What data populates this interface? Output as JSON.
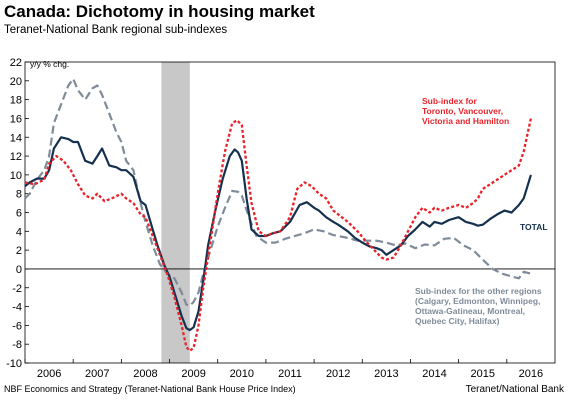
{
  "header": {
    "title": "Canada: Dichotomy in housing market",
    "subtitle": "Teranet-National Bank regional sub-indexes"
  },
  "footer": {
    "source": "NBF Economics and Strategy (Teranet-National Bank House Price Index)",
    "credit": "Teranet/National Bank"
  },
  "chart_data": {
    "type": "line",
    "title": "Canada: Dichotomy in housing market",
    "subtitle": "Teranet-National Bank regional sub-indexes",
    "ylabel": "y/y % chg.",
    "ylim": [
      -10,
      22
    ],
    "yticks": [
      -10,
      -8,
      -6,
      -4,
      -2,
      0,
      2,
      4,
      6,
      8,
      10,
      12,
      14,
      16,
      18,
      20,
      22
    ],
    "xlim": [
      2005.5,
      2016.5
    ],
    "xtick_labels": [
      "2006",
      "2007",
      "2008",
      "2009",
      "2010",
      "2011",
      "2012",
      "2013",
      "2014",
      "2015",
      "2016"
    ],
    "xtick_positions": [
      2006,
      2007,
      2008,
      2009,
      2010,
      2011,
      2012,
      2013,
      2014,
      2015,
      2016
    ],
    "zero_line": true,
    "grid": false,
    "recession_band": {
      "start": 2008.33,
      "end": 2008.92,
      "color": "#c8c8c8"
    },
    "series": [
      {
        "name": "TOTAL",
        "color": "#15314f",
        "style": "solid",
        "x": [
          2005.5,
          2005.6,
          2005.75,
          2005.9,
          2006.0,
          2006.1,
          2006.25,
          2006.4,
          2006.5,
          2006.6,
          2006.75,
          2006.9,
          2007.0,
          2007.1,
          2007.25,
          2007.4,
          2007.5,
          2007.6,
          2007.75,
          2007.9,
          2008.0,
          2008.15,
          2008.25,
          2008.4,
          2008.5,
          2008.6,
          2008.75,
          2008.85,
          2008.92,
          2009.0,
          2009.1,
          2009.2,
          2009.3,
          2009.45,
          2009.6,
          2009.75,
          2009.85,
          2009.92,
          2010.0,
          2010.1,
          2010.2,
          2010.35,
          2010.5,
          2010.65,
          2010.8,
          2011.0,
          2011.2,
          2011.35,
          2011.5,
          2011.6,
          2011.75,
          2011.9,
          2012.0,
          2012.2,
          2012.35,
          2012.5,
          2012.65,
          2012.8,
          2012.9,
          2013.0,
          2013.15,
          2013.3,
          2013.45,
          2013.6,
          2013.75,
          2013.9,
          2014.0,
          2014.15,
          2014.3,
          2014.5,
          2014.65,
          2014.8,
          2014.9,
          2015.0,
          2015.15,
          2015.3,
          2015.45,
          2015.6,
          2015.75,
          2015.85,
          2016.0
        ],
        "values": [
          8.8,
          9.2,
          9.6,
          9.6,
          10.5,
          12.8,
          14.0,
          13.8,
          13.5,
          13.5,
          11.5,
          11.2,
          12.0,
          12.8,
          11.0,
          10.8,
          10.5,
          10.5,
          9.8,
          7.2,
          6.8,
          4.2,
          2.5,
          0.3,
          -0.8,
          -2.5,
          -5.0,
          -6.3,
          -6.5,
          -6.2,
          -4.5,
          -1.2,
          2.5,
          6.2,
          9.5,
          12.0,
          12.7,
          12.4,
          11.5,
          7.5,
          4.2,
          3.5,
          3.5,
          3.8,
          4.0,
          5.0,
          6.8,
          7.1,
          6.5,
          6.2,
          5.5,
          5.0,
          4.7,
          4.0,
          3.3,
          2.8,
          2.4,
          2.2,
          2.0,
          1.5,
          2.0,
          2.5,
          3.5,
          4.2,
          5.0,
          4.5,
          5.0,
          4.8,
          5.2,
          5.5,
          5.0,
          4.8,
          4.6,
          4.7,
          5.3,
          5.8,
          6.2,
          6.0,
          6.8,
          7.5,
          10.0
        ]
      },
      {
        "name": "Sub-index for Toronto, Vancouver, Victoria and Hamilton",
        "color": "#e8232a",
        "style": "dotted",
        "x": [
          2005.5,
          2005.7,
          2005.9,
          2006.0,
          2006.15,
          2006.3,
          2006.45,
          2006.6,
          2006.75,
          2006.9,
          2007.0,
          2007.15,
          2007.3,
          2007.5,
          2007.6,
          2007.75,
          2007.9,
          2008.0,
          2008.15,
          2008.3,
          2008.45,
          2008.6,
          2008.75,
          2008.85,
          2008.92,
          2009.0,
          2009.1,
          2009.2,
          2009.35,
          2009.5,
          2009.65,
          2009.8,
          2009.9,
          2010.0,
          2010.1,
          2010.2,
          2010.35,
          2010.5,
          2010.65,
          2010.8,
          2011.0,
          2011.15,
          2011.3,
          2011.45,
          2011.6,
          2011.75,
          2011.9,
          2012.0,
          2012.2,
          2012.4,
          2012.6,
          2012.75,
          2012.9,
          2013.0,
          2013.15,
          2013.3,
          2013.45,
          2013.6,
          2013.75,
          2013.9,
          2014.0,
          2014.15,
          2014.3,
          2014.5,
          2014.65,
          2014.8,
          2014.9,
          2015.0,
          2015.15,
          2015.3,
          2015.45,
          2015.6,
          2015.75,
          2015.85,
          2016.0
        ],
        "values": [
          9.2,
          9.0,
          9.5,
          11.2,
          12.0,
          11.5,
          10.5,
          9.0,
          7.8,
          7.5,
          8.0,
          7.2,
          7.5,
          8.0,
          7.5,
          7.0,
          5.8,
          5.5,
          3.5,
          1.5,
          -0.5,
          -3.0,
          -6.0,
          -8.3,
          -8.7,
          -8.4,
          -6.0,
          -2.0,
          3.0,
          8.0,
          12.5,
          15.5,
          15.8,
          15.3,
          11.0,
          7.0,
          4.0,
          3.5,
          3.8,
          4.0,
          5.5,
          8.5,
          9.2,
          8.8,
          8.0,
          7.5,
          6.2,
          5.8,
          5.0,
          4.0,
          2.8,
          2.0,
          1.2,
          1.0,
          1.2,
          2.5,
          4.0,
          5.5,
          6.5,
          6.0,
          6.5,
          6.2,
          6.5,
          6.8,
          6.5,
          7.0,
          7.5,
          8.5,
          9.0,
          9.5,
          10.0,
          10.5,
          11.0,
          12.5,
          16.0
        ]
      },
      {
        "name": "Sub-index for the other regions (Calgary, Edmonton, Winnipeg, Ottawa-Gatineau, Montreal, Quebec City, Halifax)",
        "color": "#7f8b99",
        "style": "dashed",
        "x": [
          2005.5,
          2005.6,
          2005.75,
          2005.9,
          2006.0,
          2006.1,
          2006.25,
          2006.4,
          2006.5,
          2006.6,
          2006.75,
          2006.9,
          2007.0,
          2007.1,
          2007.25,
          2007.4,
          2007.5,
          2007.6,
          2007.75,
          2007.9,
          2008.0,
          2008.15,
          2008.3,
          2008.45,
          2008.6,
          2008.75,
          2008.85,
          2008.92,
          2009.0,
          2009.1,
          2009.2,
          2009.35,
          2009.5,
          2009.65,
          2009.8,
          2009.92,
          2010.0,
          2010.15,
          2010.3,
          2010.5,
          2010.7,
          2010.9,
          2011.1,
          2011.3,
          2011.5,
          2011.7,
          2011.9,
          2012.0,
          2012.2,
          2012.4,
          2012.6,
          2012.8,
          2013.0,
          2013.2,
          2013.4,
          2013.6,
          2013.8,
          2014.0,
          2014.2,
          2014.4,
          2014.6,
          2014.8,
          2015.0,
          2015.2,
          2015.4,
          2015.6,
          2015.75,
          2015.85,
          2016.0
        ],
        "values": [
          7.5,
          8.0,
          9.5,
          10.5,
          12.0,
          15.5,
          17.5,
          19.5,
          20.2,
          19.0,
          18.0,
          19.2,
          19.5,
          18.5,
          16.5,
          14.5,
          13.5,
          11.5,
          10.5,
          7.0,
          5.0,
          2.5,
          0.5,
          -0.5,
          -1.0,
          -2.5,
          -3.8,
          -3.9,
          -3.5,
          -2.5,
          -0.5,
          2.0,
          4.5,
          6.5,
          8.3,
          8.2,
          7.8,
          5.5,
          3.5,
          2.8,
          2.8,
          3.2,
          3.5,
          3.8,
          4.2,
          4.0,
          3.6,
          3.5,
          3.3,
          3.0,
          3.0,
          3.0,
          2.8,
          2.5,
          2.7,
          2.2,
          2.6,
          2.5,
          3.2,
          3.3,
          2.5,
          2.0,
          1.0,
          0.0,
          -0.5,
          -0.8,
          -1.0,
          -0.3,
          -0.5
        ]
      }
    ],
    "annotations": [
      {
        "text": "Sub-index for",
        "color": "#e8232a"
      },
      {
        "text": "Toronto, Vancouver,",
        "color": "#e8232a"
      },
      {
        "text": "Victoria and Hamilton",
        "color": "#e8232a"
      },
      {
        "text": "TOTAL",
        "color": "#15314f"
      },
      {
        "text": "Sub-index for the other regions",
        "color": "#7f8b99"
      },
      {
        "text": "(Calgary, Edmonton, Winnipeg,",
        "color": "#7f8b99"
      },
      {
        "text": "Ottawa-Gatineau, Montreal,",
        "color": "#7f8b99"
      },
      {
        "text": "Quebec City, Halifax)",
        "color": "#7f8b99"
      }
    ]
  }
}
